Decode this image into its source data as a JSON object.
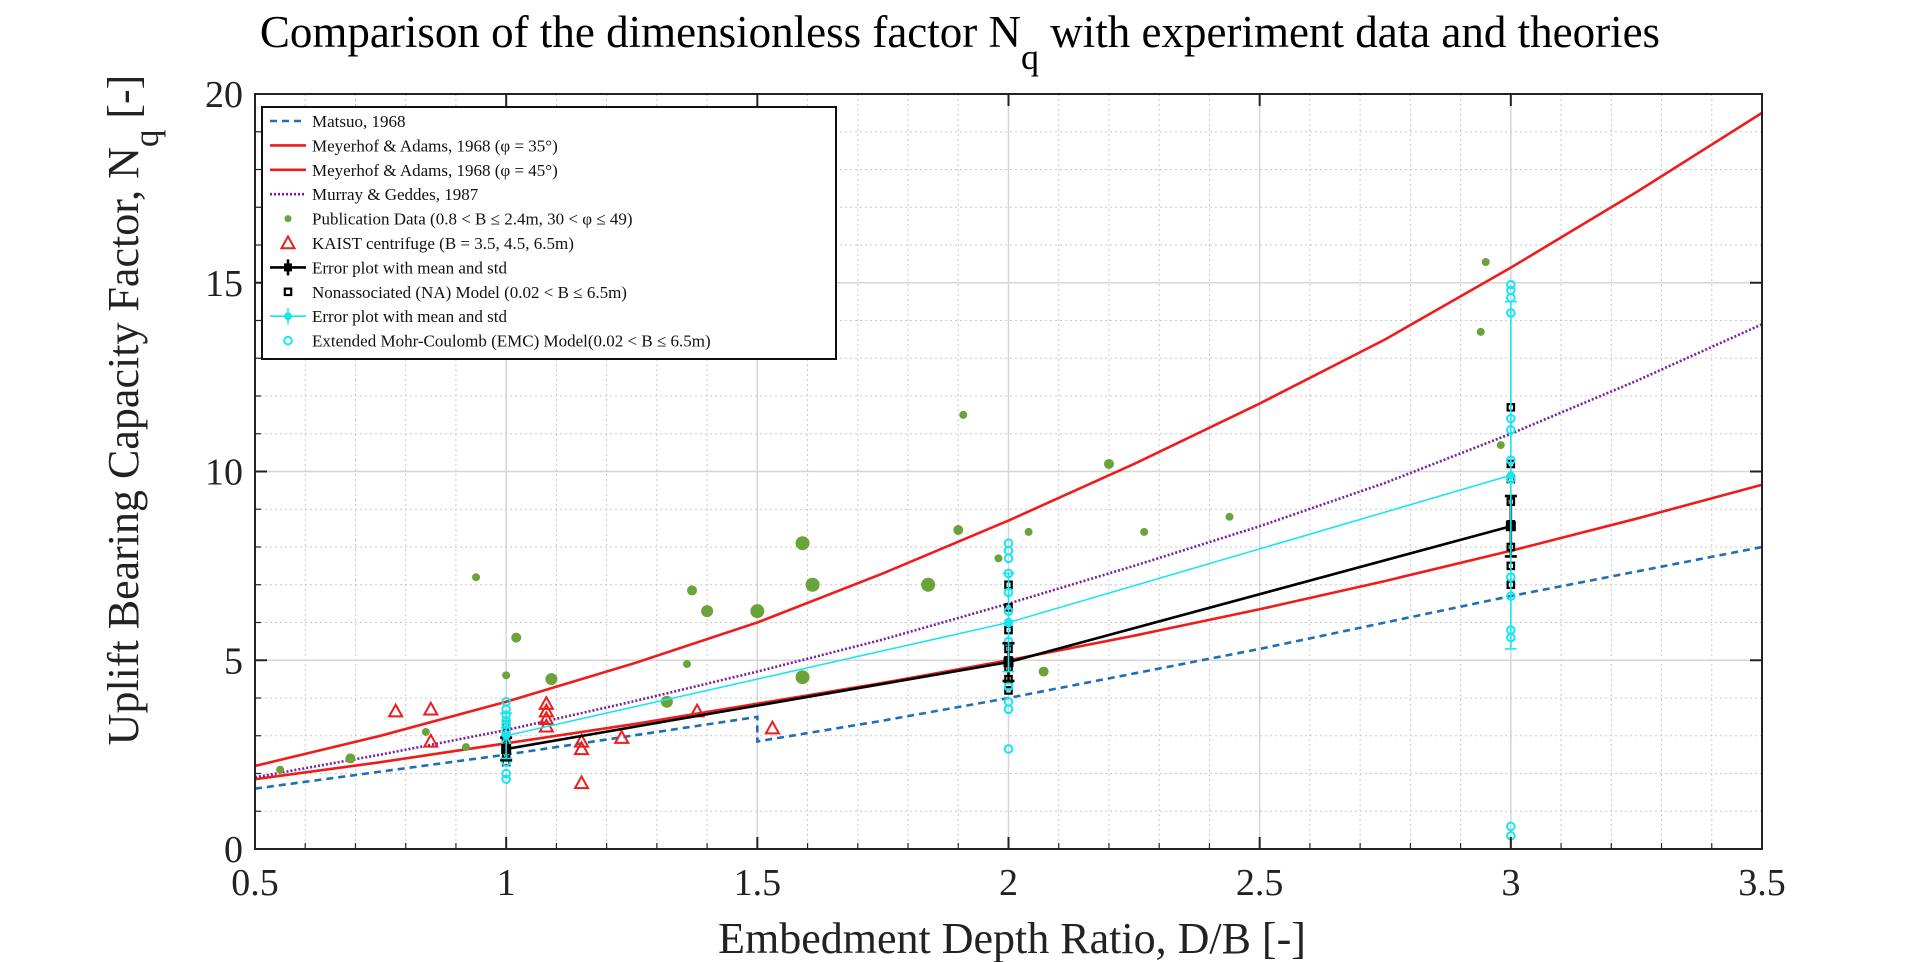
{
  "chart_data": {
    "type": "line",
    "title": "Comparison of the dimensionless factor N",
    "title_subscript": "q",
    "title_suffix": " with experiment data and theories",
    "xlabel": "Embedment Depth Ratio, D/B [-]",
    "ylabel": "Uplift Bearing Capacity Factor, N",
    "ylabel_subscript": "q",
    "ylabel_suffix": " [-]",
    "xlim": [
      0.5,
      3.5
    ],
    "ylim": [
      0,
      20
    ],
    "x_ticks": [
      0.5,
      1,
      1.5,
      2,
      2.5,
      3,
      3.5
    ],
    "x_tick_labels": [
      "0.5",
      "1",
      "1.5",
      "2",
      "2.5",
      "3",
      "3.5"
    ],
    "y_ticks": [
      0,
      5,
      10,
      15,
      20
    ],
    "y_tick_labels": [
      "0",
      "5",
      "10",
      "15",
      "20"
    ],
    "grid": true,
    "minor_grid": true,
    "legend_position": "top-left",
    "series": [
      {
        "name": "Matsuo, 1968",
        "kind": "line",
        "style": "dashed",
        "color": "#1f6fb4",
        "x": [
          0.5,
          0.75,
          1.0,
          1.25,
          1.5,
          1.5,
          1.75,
          2.0,
          2.25,
          2.5,
          2.75,
          3.0,
          3.25,
          3.5
        ],
        "y": [
          1.6,
          2.05,
          2.5,
          3.0,
          3.5,
          2.85,
          3.4,
          4.0,
          4.65,
          5.3,
          6.0,
          6.7,
          7.35,
          8.0
        ]
      },
      {
        "name": "Meyerhof & Adams, 1968 (φ = 35°)",
        "kind": "line",
        "style": "solid",
        "color": "#ee1c1c",
        "x": [
          0.5,
          0.75,
          1.0,
          1.25,
          1.5,
          1.75,
          2.0,
          2.25,
          2.5,
          2.75,
          3.0,
          3.25,
          3.5
        ],
        "y": [
          1.85,
          2.3,
          2.8,
          3.3,
          3.85,
          4.4,
          5.0,
          5.65,
          6.35,
          7.1,
          7.9,
          8.75,
          9.65
        ]
      },
      {
        "name": "Meyerhof & Adams, 1968 (φ = 45°)",
        "kind": "line",
        "style": "solid",
        "color": "#ee1c1c",
        "x": [
          0.5,
          0.75,
          1.0,
          1.25,
          1.5,
          1.75,
          2.0,
          2.25,
          2.5,
          2.75,
          3.0,
          3.25,
          3.5
        ],
        "y": [
          2.2,
          3.0,
          3.9,
          4.9,
          6.0,
          7.3,
          8.7,
          10.2,
          11.8,
          13.5,
          15.4,
          17.4,
          19.5
        ]
      },
      {
        "name": "Murray & Geddes, 1987",
        "kind": "line",
        "style": "dotted",
        "color": "#7a1ea0",
        "x": [
          0.5,
          0.75,
          1.0,
          1.25,
          1.5,
          1.75,
          2.0,
          2.25,
          2.5,
          2.75,
          3.0,
          3.25,
          3.5
        ],
        "y": [
          1.9,
          2.5,
          3.15,
          3.9,
          4.7,
          5.55,
          6.5,
          7.5,
          8.55,
          9.7,
          11.0,
          12.4,
          13.9
        ]
      },
      {
        "name": "Publication Data (0.8 < B ≤ 2.4m, 30 < φ ≤ 49)",
        "kind": "scatter",
        "marker": "dot",
        "color": "#6aa339",
        "x": [
          0.55,
          0.69,
          0.84,
          0.92,
          0.94,
          1.0,
          1.02,
          1.09,
          1.32,
          1.36,
          1.37,
          1.4,
          1.5,
          1.59,
          1.59,
          1.61,
          1.84,
          1.9,
          1.91,
          1.98,
          2.04,
          2.07,
          2.2,
          2.27,
          2.44,
          2.94,
          2.95,
          2.98
        ],
        "y": [
          2.1,
          2.4,
          3.1,
          2.7,
          7.2,
          4.6,
          5.6,
          4.5,
          3.9,
          4.9,
          6.85,
          6.3,
          6.3,
          8.1,
          4.55,
          7.0,
          7.0,
          8.45,
          11.5,
          7.7,
          8.4,
          4.7,
          10.2,
          8.4,
          8.8,
          13.7,
          15.55,
          10.7
        ],
        "sizes": [
          4,
          5,
          4,
          4,
          4,
          4,
          5,
          6,
          6,
          4,
          5,
          6,
          7,
          7,
          7,
          7,
          7,
          5,
          4,
          4,
          4,
          5,
          5,
          4,
          4,
          4,
          4,
          4
        ]
      },
      {
        "name": "KAIST centrifuge (B = 3.5, 4.5, 6.5m)",
        "kind": "scatter",
        "marker": "triangle",
        "color": "#ee1c1c",
        "x": [
          0.78,
          0.85,
          0.85,
          1.08,
          1.08,
          1.08,
          1.08,
          1.15,
          1.15,
          1.15,
          1.23,
          1.38,
          1.53
        ],
        "y": [
          3.65,
          3.7,
          2.85,
          3.85,
          3.65,
          3.45,
          3.25,
          2.85,
          2.65,
          1.75,
          2.95,
          3.65,
          3.2
        ]
      },
      {
        "name": "Error plot with mean and std",
        "kind": "errorbar",
        "color": "#000000",
        "x": [
          1,
          2,
          3
        ],
        "y": [
          2.65,
          4.95,
          8.55
        ],
        "std": [
          0.3,
          0.5,
          0.8
        ]
      },
      {
        "name": "Nonassociated (NA) Model (0.02 < B ≤ 6.5m)",
        "kind": "scatter",
        "marker": "square",
        "color": "#000000",
        "x": [
          1,
          1,
          1,
          1,
          1,
          1,
          1,
          2,
          2,
          2,
          2,
          2,
          2,
          2,
          2,
          3,
          3,
          3,
          3,
          3,
          3,
          3,
          3
        ],
        "y": [
          2.3,
          2.5,
          2.65,
          2.8,
          2.95,
          3.1,
          3.3,
          4.2,
          4.5,
          4.8,
          5.0,
          5.3,
          5.8,
          6.4,
          7.0,
          7.0,
          7.5,
          8.0,
          8.6,
          9.2,
          9.8,
          10.2,
          11.7
        ]
      },
      {
        "name": "Error plot with mean and std",
        "kind": "errorbar",
        "color": "#19e6ee",
        "x": [
          1,
          2,
          3
        ],
        "y": [
          3.0,
          6.0,
          9.9
        ],
        "std": [
          0.6,
          1.3,
          4.6
        ]
      },
      {
        "name": "Extended Mohr-Coulomb (EMC) Model(0.02 < B ≤ 6.5m)",
        "kind": "scatter",
        "marker": "circle",
        "color": "#19e6ee",
        "x": [
          1,
          1,
          1,
          1,
          1,
          1,
          1,
          1,
          1,
          1,
          1,
          1,
          2,
          2,
          2,
          2,
          2,
          2,
          2,
          2,
          2,
          2,
          2,
          2,
          3,
          3,
          3,
          3,
          3,
          3,
          3,
          3,
          3,
          3,
          3,
          3,
          3,
          3
        ],
        "y": [
          1.85,
          2.0,
          2.3,
          2.6,
          2.8,
          3.0,
          3.15,
          3.3,
          3.4,
          3.55,
          3.7,
          3.9,
          2.65,
          3.7,
          3.9,
          4.3,
          5.5,
          6.0,
          6.3,
          6.8,
          7.3,
          7.7,
          7.9,
          8.1,
          0.35,
          0.6,
          5.6,
          5.8,
          6.7,
          7.2,
          9.8,
          10.3,
          11.1,
          11.4,
          14.2,
          14.6,
          14.8,
          14.95
        ]
      }
    ],
    "legend": [
      "Matsuo, 1968",
      "Meyerhof & Adams, 1968 (φ = 35°)",
      "Meyerhof & Adams, 1968 (φ = 45°)",
      "Murray & Geddes, 1987",
      "Publication Data (0.8 < B ≤ 2.4m, 30 < φ ≤ 49)",
      "KAIST centrifuge (B = 3.5, 4.5, 6.5m)",
      "Error plot with mean and std",
      "Nonassociated (NA) Model (0.02 < B ≤ 6.5m)",
      "Error plot with mean and std",
      "Extended Mohr-Coulomb (EMC) Model(0.02 < B ≤ 6.5m)"
    ]
  }
}
